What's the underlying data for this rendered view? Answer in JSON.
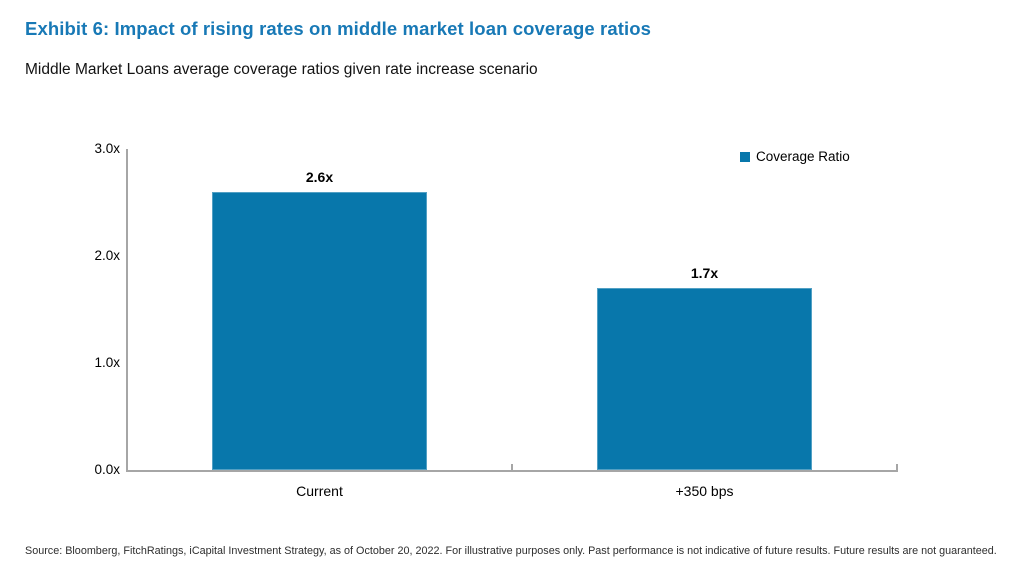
{
  "header": {
    "title": "Exhibit 6: Impact of rising rates on middle market loan coverage ratios",
    "subtitle": "Middle Market Loans average coverage ratios given rate increase scenario"
  },
  "chart_data": {
    "type": "bar",
    "categories": [
      "Current",
      "+350 bps"
    ],
    "values": [
      2.6,
      1.7
    ],
    "value_labels": [
      "2.6x",
      "1.7x"
    ],
    "series_name": "Coverage Ratio",
    "legend": [
      "Coverage Ratio"
    ],
    "legend_position": "top-right",
    "title": "Middle Market Loans average coverage ratios given rate increase scenario",
    "xlabel": "",
    "ylabel": "",
    "ylim": [
      0,
      3
    ],
    "ytick_labels": [
      "0.0x",
      "1.0x",
      "2.0x",
      "3.0x"
    ],
    "grid": false,
    "bar_color": "#0877AB"
  },
  "colors": {
    "title_blue": "#1879B6",
    "bar_blue": "#0877AB",
    "axis_gray": "#A6A6A6",
    "label_black": "#000000"
  },
  "footer": {
    "source": "Source: Bloomberg, FitchRatings, iCapital Investment Strategy, as of October 20, 2022. For illustrative purposes only. Past performance is not indicative of future results. Future results are not guaranteed."
  }
}
